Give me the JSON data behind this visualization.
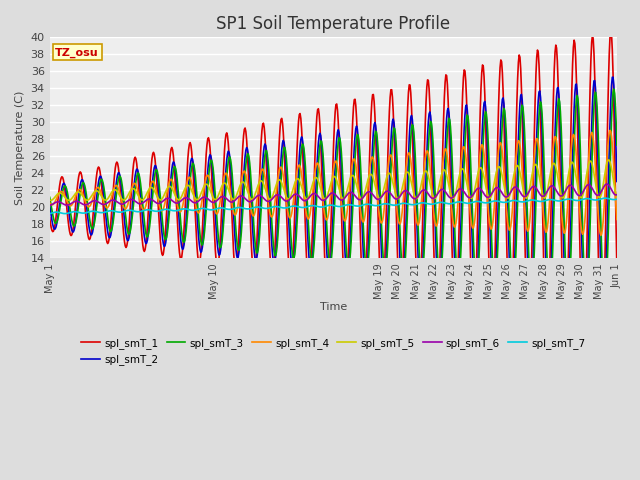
{
  "title": "SP1 Soil Temperature Profile",
  "xlabel": "Time",
  "ylabel": "Soil Temperature (C)",
  "ylim": [
    14,
    40
  ],
  "annotation": "TZ_osu",
  "annotation_color": "#cc0000",
  "annotation_bg": "#ffffcc",
  "annotation_border": "#cc9900",
  "series_colors": {
    "spl_smT_1": "#dd0000",
    "spl_smT_2": "#0000cc",
    "spl_smT_3": "#00aa00",
    "spl_smT_4": "#ff8800",
    "spl_smT_5": "#cccc00",
    "spl_smT_6": "#9900aa",
    "spl_smT_7": "#00ccdd"
  },
  "xtick_positions": [
    0,
    9,
    18,
    19,
    20,
    21,
    22,
    23,
    24,
    25,
    26,
    27,
    28,
    29,
    30,
    31
  ],
  "xtick_labels": [
    "May 1",
    "May 10",
    "May 19",
    "May 20",
    "May 21",
    "May 22",
    "May 23",
    "May 24",
    "May 25",
    "May 26",
    "May 27",
    "May 28",
    "May 29",
    "May 30",
    "May 31",
    "Jun 1"
  ],
  "ytick_positions": [
    14,
    16,
    18,
    20,
    22,
    24,
    26,
    28,
    30,
    32,
    34,
    36,
    38,
    40
  ],
  "bg_color": "#dddddd",
  "plot_bg_color": "#eeeeee",
  "grid_color": "#ffffff",
  "title_fontsize": 12,
  "lw": 1.2
}
